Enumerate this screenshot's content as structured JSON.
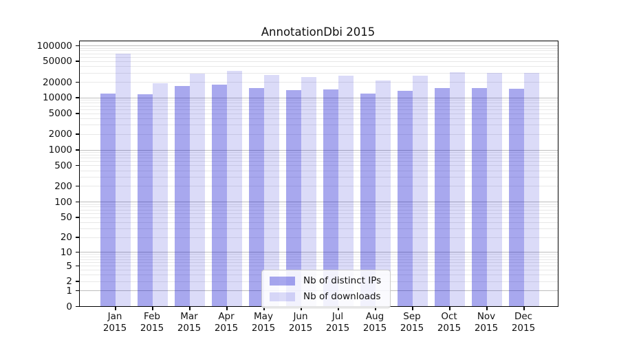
{
  "chart_data": {
    "type": "bar",
    "title": "AnnotationDbi 2015",
    "scale": "log10(1+y)",
    "grid": true,
    "legend_position": "lower center",
    "ylim": [
      0,
      120000
    ],
    "x_tick_year": "2015",
    "categories": [
      "Jan",
      "Feb",
      "Mar",
      "Apr",
      "May",
      "Jun",
      "Jul",
      "Aug",
      "Sep",
      "Oct",
      "Nov",
      "Dec"
    ],
    "y_tick_labels": [
      "100000",
      "50000",
      "20000",
      "10000",
      "5000",
      "2000",
      "1000",
      "500",
      "200",
      "100",
      "50",
      "20",
      "10",
      "5",
      "2",
      "1",
      "0"
    ],
    "series": [
      {
        "name": "Nb of distinct IPs",
        "fill": "rgba(0,0,205,0.34)",
        "color_hex": "#aaaaee",
        "values": [
          12000,
          11600,
          16800,
          17800,
          15400,
          14100,
          14500,
          12100,
          13600,
          15400,
          15400,
          14900
        ]
      },
      {
        "name": "Nb of downloads",
        "fill": "rgba(0,0,205,0.14)",
        "color_hex": "#dcdcf8",
        "values": [
          70000,
          19000,
          29000,
          33000,
          27500,
          25000,
          26500,
          21500,
          26000,
          31000,
          30000,
          30000
        ]
      }
    ],
    "colors": {
      "axis": "#000000",
      "grid_major": "#bdbdbd",
      "grid_minor": "#e8e8e8",
      "text": "#111111"
    }
  }
}
